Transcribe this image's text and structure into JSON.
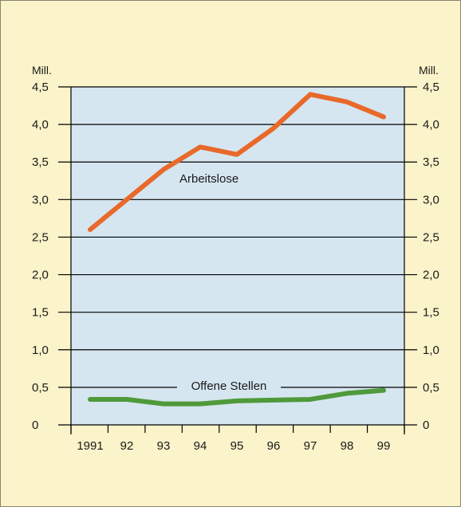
{
  "chart_data": {
    "type": "line",
    "x": [
      "1991",
      "92",
      "93",
      "94",
      "95",
      "96",
      "97",
      "98",
      "99"
    ],
    "series": [
      {
        "name": "Arbeitslose",
        "values": [
          2.6,
          3.0,
          3.4,
          3.7,
          3.6,
          3.95,
          4.4,
          4.3,
          4.1
        ],
        "color": "#e8692a"
      },
      {
        "name": "Offene Stellen",
        "values": [
          0.34,
          0.34,
          0.28,
          0.28,
          0.32,
          0.33,
          0.34,
          0.42,
          0.46
        ],
        "color": "#4f9a3a"
      }
    ],
    "ylim": [
      0,
      4.5
    ],
    "yticks": [
      "0",
      "0,5",
      "1,0",
      "1,5",
      "2,0",
      "2,5",
      "3,0",
      "3,5",
      "4,0",
      "4,5"
    ],
    "unit_left": "Mill.",
    "unit_right": "Mill.",
    "grid": true,
    "colors": {
      "background": "#fbf3c9",
      "plot": "#d5e6f0",
      "gridline": "#000000"
    }
  }
}
